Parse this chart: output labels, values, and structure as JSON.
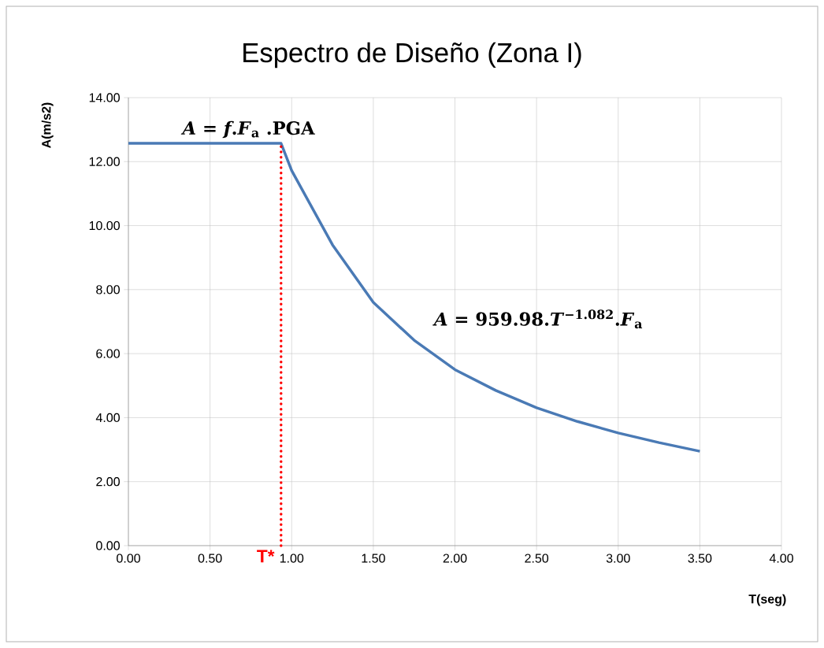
{
  "chart_data": {
    "type": "line",
    "title": "Espectro de Diseño (Zona I)",
    "xlabel": "T(seg)",
    "ylabel": "A(m/s2)",
    "x": [
      0,
      0.935,
      1.0,
      1.25,
      1.5,
      1.75,
      2.0,
      2.25,
      2.5,
      2.75,
      3.0,
      3.25,
      3.5
    ],
    "series": [
      {
        "color": "#4a7ab5",
        "values": [
          12.57,
          12.57,
          11.72,
          9.4,
          7.6,
          6.42,
          5.5,
          4.85,
          4.31,
          3.88,
          3.52,
          3.22,
          2.95
        ]
      }
    ],
    "xlim": [
      0,
      4
    ],
    "ylim": [
      0,
      14
    ],
    "xticks": [
      {
        "value": 0,
        "label": "0.00"
      },
      {
        "value": 0.5,
        "label": "0.50"
      },
      {
        "value": 1,
        "label": "1.00"
      },
      {
        "value": 1.5,
        "label": "1.50"
      },
      {
        "value": 2,
        "label": "2.00"
      },
      {
        "value": 2.5,
        "label": "2.50"
      },
      {
        "value": 3,
        "label": "3.00"
      },
      {
        "value": 3.5,
        "label": "3.50"
      },
      {
        "value": 4,
        "label": "4.00"
      }
    ],
    "yticks": [
      {
        "value": 0,
        "label": "0.00"
      },
      {
        "value": 2,
        "label": "2.00"
      },
      {
        "value": 4,
        "label": "4.00"
      },
      {
        "value": 6,
        "label": "6.00"
      },
      {
        "value": 8,
        "label": "8.00"
      },
      {
        "value": 10,
        "label": "10.00"
      },
      {
        "value": 12,
        "label": "12.00"
      },
      {
        "value": 14,
        "label": "14.00"
      }
    ],
    "ref_lines": [
      {
        "axis": "x",
        "value": 0.935,
        "label": "T*",
        "color": "#ff0000",
        "line_style": "dotted"
      }
    ],
    "annotations": [
      {
        "text": "*A* = *f*.*F*$_{a}$ .PGA",
        "x": 0.4,
        "y": 12.57
      },
      {
        "text": "*A* = 959.98.*T*$^{−1.082}$.*F*$_{a}$",
        "x": 1.8,
        "y": 6.42
      }
    ],
    "grid": true,
    "line_style": "solid",
    "marker": "none"
  }
}
